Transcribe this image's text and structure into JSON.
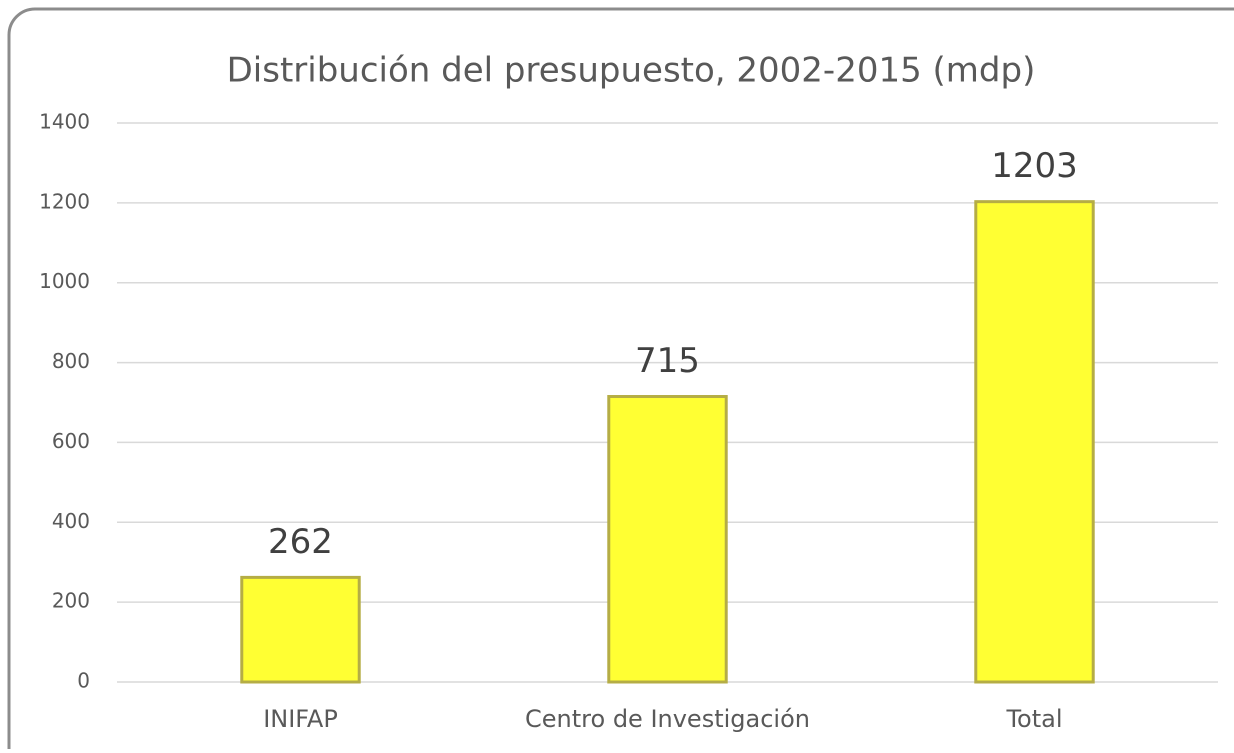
{
  "chart_data": {
    "type": "bar",
    "title": "Distribución del presupuesto, 2002-2015 (mdp)",
    "categories": [
      "INIFAP",
      "Centro de Investigación",
      "Total"
    ],
    "values": [
      262,
      715,
      1203
    ],
    "color": "#ffff33",
    "ylim": [
      0,
      1400
    ],
    "yticks": [
      0,
      200,
      400,
      600,
      800,
      1000,
      1200,
      1400
    ],
    "grid": true
  }
}
